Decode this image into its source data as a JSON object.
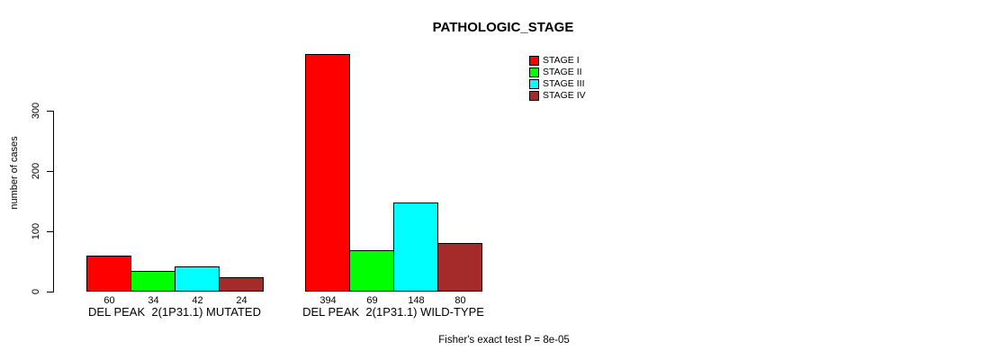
{
  "chart_data": {
    "type": "bar",
    "title": "PATHOLOGIC_STAGE",
    "ylabel": "number of cases",
    "xlabel": "",
    "categories": [
      "DEL PEAK  2(1P31.1) MUTATED",
      "DEL PEAK  2(1P31.1) WILD-TYPE"
    ],
    "series": [
      {
        "name": "STAGE I",
        "color": "#ff0000",
        "values": [
          60,
          394
        ]
      },
      {
        "name": "STAGE II",
        "color": "#00ff00",
        "values": [
          34,
          69
        ]
      },
      {
        "name": "STAGE III",
        "color": "#00ffff",
        "values": [
          42,
          148
        ]
      },
      {
        "name": "STAGE IV",
        "color": "#a52a2a",
        "values": [
          24,
          80
        ]
      }
    ],
    "yticks": [
      0,
      100,
      200,
      300
    ],
    "ylim": [
      0,
      394
    ],
    "grid": false,
    "value_labels_shown": true,
    "legend_position": "top-right",
    "annotation": "Fisher's exact test P = 8e-05"
  },
  "colors": {
    "axis": "#000000",
    "background": "#ffffff",
    "stage_i": "#ff0000",
    "stage_ii": "#00ff00",
    "stage_iii": "#00ffff",
    "stage_iv": "#a52a2a"
  }
}
